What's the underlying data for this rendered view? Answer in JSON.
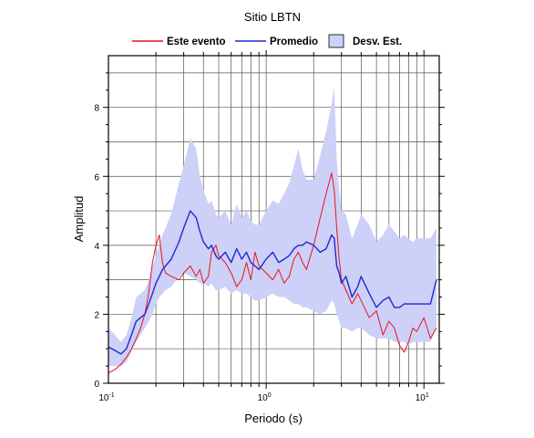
{
  "chart_data": {
    "type": "line",
    "title": "Sitio LBTN",
    "xlabel": "Periodo (s)",
    "ylabel": "Amplitud",
    "xscale": "log",
    "xlim": [
      0.1,
      12.5
    ],
    "ylim": [
      0,
      9.5
    ],
    "x_ticks": [
      {
        "value": 0.1,
        "base": "10",
        "exp": "-1"
      },
      {
        "value": 1,
        "base": "10",
        "exp": "0"
      },
      {
        "value": 10,
        "base": "10",
        "exp": "1"
      }
    ],
    "y_ticks": [
      0,
      2,
      4,
      6,
      8
    ],
    "grid": true,
    "legend_position": "top-center",
    "legend": [
      {
        "label": "Este evento",
        "kind": "line",
        "color": "#e8141b"
      },
      {
        "label": "Promedio",
        "kind": "line",
        "color": "#1e28d2"
      },
      {
        "label": "Desv. Est.",
        "kind": "band",
        "color": "#cdd0f7"
      }
    ],
    "x": [
      0.1,
      0.11,
      0.12,
      0.13,
      0.14,
      0.15,
      0.16,
      0.17,
      0.18,
      0.19,
      0.2,
      0.21,
      0.22,
      0.23,
      0.25,
      0.28,
      0.3,
      0.33,
      0.36,
      0.38,
      0.4,
      0.43,
      0.45,
      0.48,
      0.5,
      0.55,
      0.6,
      0.65,
      0.7,
      0.75,
      0.8,
      0.85,
      0.9,
      1.0,
      1.1,
      1.2,
      1.3,
      1.4,
      1.5,
      1.6,
      1.7,
      1.8,
      2.0,
      2.2,
      2.4,
      2.6,
      2.7,
      2.8,
      2.9,
      3.0,
      3.2,
      3.5,
      3.8,
      4.0,
      4.5,
      5.0,
      5.5,
      6.0,
      6.5,
      7.0,
      7.5,
      8.0,
      8.5,
      9.0,
      10.0,
      11.0,
      12.0
    ],
    "series": [
      {
        "name": "Este evento",
        "color": "#e8141b",
        "values": [
          0.3,
          0.4,
          0.55,
          0.75,
          1.0,
          1.3,
          1.6,
          2.0,
          2.6,
          3.5,
          4.0,
          4.3,
          3.5,
          3.2,
          3.1,
          3.0,
          3.2,
          3.4,
          3.1,
          3.3,
          2.9,
          3.1,
          3.8,
          4.0,
          3.7,
          3.5,
          3.2,
          2.8,
          3.0,
          3.5,
          3.0,
          3.8,
          3.4,
          3.2,
          3.0,
          3.3,
          2.9,
          3.1,
          3.6,
          3.8,
          3.5,
          3.3,
          4.0,
          4.8,
          5.5,
          6.1,
          5.6,
          4.5,
          3.6,
          3.0,
          2.7,
          2.3,
          2.6,
          2.4,
          1.9,
          2.1,
          1.4,
          1.8,
          1.6,
          1.1,
          0.9,
          1.2,
          1.6,
          1.5,
          1.9,
          1.3,
          1.6
        ]
      },
      {
        "name": "Promedio",
        "color": "#1e28d2",
        "values": [
          1.05,
          0.95,
          0.85,
          1.0,
          1.4,
          1.8,
          1.9,
          2.0,
          2.3,
          2.6,
          2.9,
          3.1,
          3.3,
          3.4,
          3.6,
          4.1,
          4.5,
          5.0,
          4.8,
          4.4,
          4.1,
          3.9,
          4.0,
          3.7,
          3.6,
          3.8,
          3.5,
          3.9,
          3.6,
          3.8,
          3.5,
          3.4,
          3.3,
          3.6,
          3.8,
          3.5,
          3.6,
          3.7,
          3.9,
          4.0,
          4.0,
          4.1,
          4.0,
          3.8,
          3.9,
          4.3,
          4.2,
          3.4,
          3.2,
          2.9,
          3.1,
          2.5,
          2.8,
          3.1,
          2.6,
          2.2,
          2.4,
          2.5,
          2.2,
          2.2,
          2.3,
          2.3,
          2.3,
          2.3,
          2.3,
          2.3,
          3.0
        ]
      }
    ],
    "band": {
      "name": "Desv. Est.",
      "color": "#cdd0f7",
      "lower": [
        0.5,
        0.5,
        0.5,
        0.6,
        0.9,
        1.2,
        1.4,
        1.6,
        1.8,
        2.0,
        2.3,
        2.5,
        2.6,
        2.7,
        2.8,
        3.1,
        3.2,
        3.1,
        3.0,
        2.9,
        2.9,
        2.8,
        2.9,
        2.7,
        2.7,
        2.8,
        2.6,
        2.7,
        2.6,
        2.6,
        2.5,
        2.4,
        2.4,
        2.5,
        2.6,
        2.5,
        2.5,
        2.4,
        2.3,
        2.3,
        2.2,
        2.2,
        2.1,
        2.0,
        2.1,
        2.4,
        2.3,
        2.0,
        1.8,
        1.6,
        1.6,
        1.5,
        1.6,
        1.6,
        1.4,
        1.3,
        1.3,
        1.3,
        1.2,
        1.2,
        1.2,
        1.1,
        1.2,
        1.2,
        1.2,
        1.2,
        1.6
      ],
      "upper": [
        1.6,
        1.4,
        1.2,
        1.4,
        1.9,
        2.5,
        2.6,
        2.7,
        3.0,
        3.4,
        3.7,
        4.0,
        4.3,
        4.5,
        4.9,
        5.8,
        6.3,
        7.1,
        6.8,
        6.0,
        5.6,
        5.2,
        5.3,
        4.9,
        4.8,
        5.0,
        4.6,
        5.2,
        4.8,
        5.0,
        4.7,
        4.6,
        4.6,
        5.0,
        5.3,
        5.2,
        5.5,
        5.8,
        6.3,
        6.8,
        6.2,
        5.9,
        5.9,
        6.6,
        7.3,
        8.1,
        8.6,
        6.5,
        5.6,
        5.0,
        4.9,
        4.2,
        4.6,
        4.9,
        4.6,
        4.1,
        4.3,
        4.6,
        4.4,
        4.2,
        4.3,
        4.2,
        4.1,
        4.2,
        4.2,
        4.2,
        4.5
      ]
    }
  }
}
